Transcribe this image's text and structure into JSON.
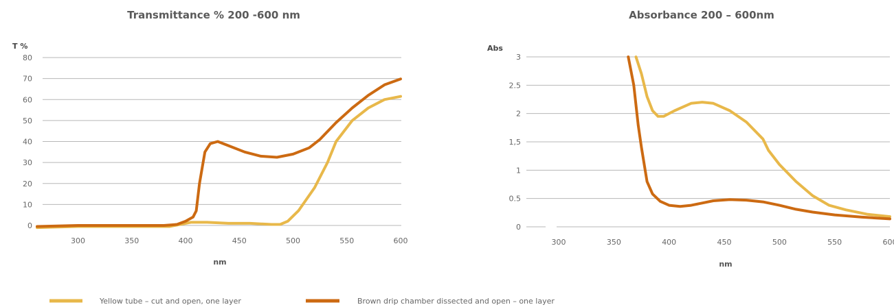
{
  "chart_data": [
    {
      "type": "line",
      "title": "Transmittance   % 200 -600 nm",
      "ylabel": "T %",
      "xlabel": "nm",
      "xlim": [
        262,
        600
      ],
      "ylim": [
        0,
        80
      ],
      "x_ticks": [
        300,
        350,
        400,
        450,
        500,
        550,
        600
      ],
      "y_ticks": [
        0,
        10,
        20,
        30,
        40,
        50,
        60,
        70,
        80
      ],
      "y_tick_labels": [
        "0",
        "10",
        "20",
        "30",
        "40",
        "50",
        "60",
        "70",
        "80"
      ],
      "grid": true,
      "series": [
        {
          "name": "Yellow tube – cut and open, one layer",
          "color": "#e8b84a",
          "points": [
            [
              262,
              -1
            ],
            [
              300,
              -0.5
            ],
            [
              350,
              -0.5
            ],
            [
              385,
              -0.5
            ],
            [
              395,
              0.5
            ],
            [
              405,
              1.5
            ],
            [
              420,
              1.5
            ],
            [
              440,
              1
            ],
            [
              460,
              1
            ],
            [
              480,
              0.5
            ],
            [
              488,
              0.5
            ],
            [
              495,
              2
            ],
            [
              505,
              7
            ],
            [
              520,
              18
            ],
            [
              532,
              30
            ],
            [
              540,
              40
            ],
            [
              555,
              50
            ],
            [
              570,
              56
            ],
            [
              585,
              60
            ],
            [
              600,
              61.5
            ]
          ]
        },
        {
          "name": "Brown drip chamber dissected and open – one layer",
          "color": "#cc6a12",
          "points": [
            [
              262,
              -0.5
            ],
            [
              300,
              0
            ],
            [
              350,
              0
            ],
            [
              380,
              0
            ],
            [
              392,
              0.5
            ],
            [
              400,
              2
            ],
            [
              407,
              4
            ],
            [
              410,
              7
            ],
            [
              413,
              20
            ],
            [
              418,
              35
            ],
            [
              423,
              39
            ],
            [
              430,
              40
            ],
            [
              440,
              38
            ],
            [
              455,
              35
            ],
            [
              470,
              33
            ],
            [
              485,
              32.5
            ],
            [
              500,
              34
            ],
            [
              515,
              37
            ],
            [
              525,
              41
            ],
            [
              540,
              49
            ],
            [
              555,
              56
            ],
            [
              570,
              62
            ],
            [
              585,
              67
            ],
            [
              600,
              69.8
            ]
          ]
        }
      ]
    },
    {
      "type": "line",
      "title": "Absorbance 200 – 600nm",
      "ylabel": "Abs",
      "xlabel": "nm",
      "xlim": [
        262,
        600
      ],
      "ylim": [
        0,
        3
      ],
      "x_ticks": [
        300,
        350,
        400,
        450,
        500,
        550,
        600
      ],
      "y_ticks": [
        0,
        0.5,
        1,
        1.5,
        2,
        2.5,
        3
      ],
      "y_tick_labels": [
        "0",
        "0.5",
        "1",
        "1,5",
        "2",
        "2.5",
        "3"
      ],
      "grid": true,
      "series": [
        {
          "name": "Yellow tube – cut and open, one layer",
          "color": "#e8b84a",
          "points": [
            [
              370,
              3
            ],
            [
              375,
              2.7
            ],
            [
              380,
              2.3
            ],
            [
              385,
              2.05
            ],
            [
              390,
              1.95
            ],
            [
              395,
              1.95
            ],
            [
              405,
              2.05
            ],
            [
              420,
              2.18
            ],
            [
              430,
              2.2
            ],
            [
              440,
              2.18
            ],
            [
              455,
              2.05
            ],
            [
              470,
              1.85
            ],
            [
              485,
              1.55
            ],
            [
              490,
              1.35
            ],
            [
              500,
              1.1
            ],
            [
              515,
              0.8
            ],
            [
              530,
              0.55
            ],
            [
              545,
              0.38
            ],
            [
              560,
              0.3
            ],
            [
              580,
              0.22
            ],
            [
              600,
              0.18
            ]
          ]
        },
        {
          "name": "Brown drip chamber dissected and open – one layer",
          "color": "#cc6a12",
          "points": [
            [
              363,
              3
            ],
            [
              368,
              2.5
            ],
            [
              372,
              1.8
            ],
            [
              375,
              1.4
            ],
            [
              380,
              0.8
            ],
            [
              385,
              0.58
            ],
            [
              392,
              0.45
            ],
            [
              400,
              0.38
            ],
            [
              410,
              0.36
            ],
            [
              420,
              0.38
            ],
            [
              430,
              0.42
            ],
            [
              440,
              0.46
            ],
            [
              455,
              0.48
            ],
            [
              470,
              0.47
            ],
            [
              485,
              0.44
            ],
            [
              500,
              0.38
            ],
            [
              515,
              0.31
            ],
            [
              530,
              0.26
            ],
            [
              550,
              0.21
            ],
            [
              575,
              0.17
            ],
            [
              600,
              0.14
            ]
          ]
        }
      ]
    }
  ],
  "legend": [
    {
      "label": "Yellow tube – cut and open, one layer",
      "color": "#e8b84a"
    },
    {
      "label": "Brown drip chamber dissected and open – one layer",
      "color": "#cc6a12"
    }
  ]
}
